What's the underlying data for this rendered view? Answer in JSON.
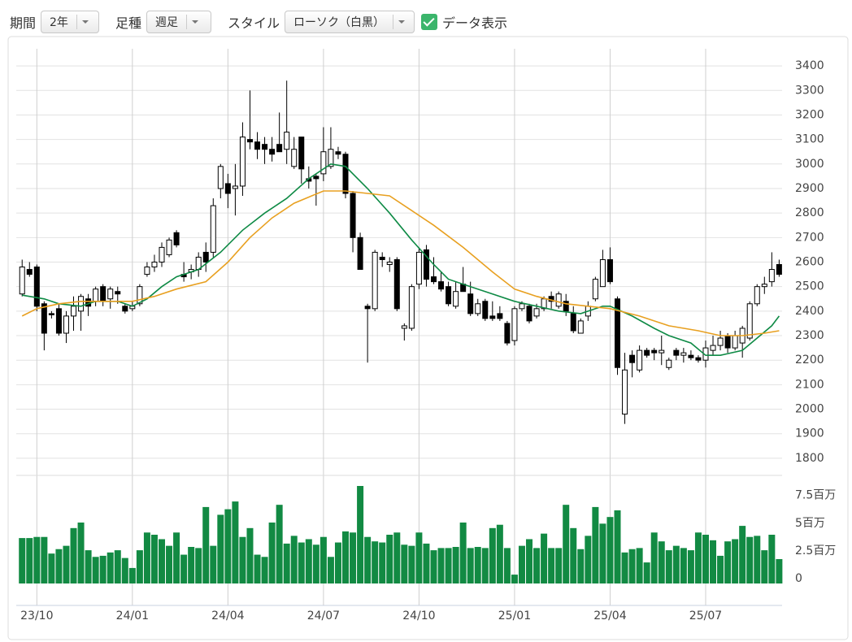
{
  "controls": [
    {
      "label": "期間",
      "value": "2年"
    },
    {
      "label": "足種",
      "value": "週足"
    },
    {
      "label": "スタイル",
      "value": "ローソク（白黒）"
    }
  ],
  "checkbox": {
    "label": "データ表示"
  },
  "chart_data": {
    "type": "candlestick",
    "xlim": [
      -0.8,
      103.4
    ],
    "xticks": [
      {
        "value": 2,
        "label": "23/10"
      },
      {
        "value": 15,
        "label": "24/01"
      },
      {
        "value": 28,
        "label": "24/04"
      },
      {
        "value": 41,
        "label": "24/07"
      },
      {
        "value": 54,
        "label": "24/10"
      },
      {
        "value": 67,
        "label": "25/01"
      },
      {
        "value": 80,
        "label": "25/04"
      },
      {
        "value": 93,
        "label": "25/07"
      }
    ],
    "ylim": [
      1730,
      3470
    ],
    "yticks": [
      1800,
      1900,
      2000,
      2100,
      2200,
      2300,
      2400,
      2500,
      2600,
      2700,
      2800,
      2900,
      3000,
      3100,
      3200,
      3300,
      3400
    ],
    "grid": true,
    "up_color": "#ffffff",
    "down_color": "#000000",
    "ohlc": [
      [
        2470,
        2610,
        2460,
        2580
      ],
      [
        2570,
        2600,
        2540,
        2550
      ],
      [
        2580,
        2590,
        2400,
        2420
      ],
      [
        2430,
        2440,
        2240,
        2310
      ],
      [
        2390,
        2400,
        2370,
        2385
      ],
      [
        2410,
        2430,
        2300,
        2310
      ],
      [
        2310,
        2400,
        2270,
        2380
      ],
      [
        2380,
        2460,
        2320,
        2420
      ],
      [
        2400,
        2470,
        2320,
        2460
      ],
      [
        2450,
        2470,
        2380,
        2420
      ],
      [
        2440,
        2500,
        2420,
        2490
      ],
      [
        2500,
        2510,
        2420,
        2440
      ],
      [
        2450,
        2500,
        2410,
        2490
      ],
      [
        2480,
        2500,
        2430,
        2470
      ],
      [
        2420,
        2430,
        2390,
        2400
      ],
      [
        2410,
        2440,
        2400,
        2420
      ],
      [
        2430,
        2510,
        2420,
        2500
      ],
      [
        2550,
        2600,
        2540,
        2580
      ],
      [
        2580,
        2630,
        2560,
        2600
      ],
      [
        2600,
        2680,
        2580,
        2660
      ],
      [
        2630,
        2700,
        2620,
        2690
      ],
      [
        2720,
        2730,
        2660,
        2670
      ],
      [
        2550,
        2600,
        2520,
        2540
      ],
      [
        2560,
        2590,
        2530,
        2570
      ],
      [
        2570,
        2640,
        2540,
        2620
      ],
      [
        2640,
        2680,
        2560,
        2600
      ],
      [
        2640,
        2860,
        2620,
        2830
      ],
      [
        2900,
        3000,
        2860,
        2990
      ],
      [
        2920,
        2960,
        2820,
        2880
      ],
      [
        2900,
        3000,
        2790,
        2910
      ],
      [
        2910,
        3170,
        2870,
        3110
      ],
      [
        3100,
        3300,
        3060,
        3090
      ],
      [
        3090,
        3130,
        3020,
        3060
      ],
      [
        3080,
        3110,
        3000,
        3060
      ],
      [
        3060,
        3110,
        3010,
        3040
      ],
      [
        3080,
        3210,
        3050,
        3050
      ],
      [
        3060,
        3340,
        3000,
        3130
      ],
      [
        2990,
        3110,
        2980,
        3060
      ],
      [
        3110,
        3110,
        2920,
        2980
      ],
      [
        2940,
        2990,
        2900,
        2930
      ],
      [
        2950,
        2960,
        2830,
        2940
      ],
      [
        2960,
        3150,
        2930,
        3050
      ],
      [
        2990,
        3150,
        2980,
        3060
      ],
      [
        3050,
        3070,
        3020,
        3040
      ],
      [
        3040,
        3050,
        2860,
        2880
      ],
      [
        2880,
        2890,
        2640,
        2700
      ],
      [
        2700,
        2720,
        2570,
        2570
      ],
      [
        2420,
        2430,
        2190,
        2410
      ],
      [
        2410,
        2650,
        2400,
        2640
      ],
      [
        2620,
        2640,
        2580,
        2610
      ],
      [
        2590,
        2620,
        2560,
        2600
      ],
      [
        2610,
        2620,
        2400,
        2410
      ],
      [
        2330,
        2350,
        2280,
        2340
      ],
      [
        2330,
        2510,
        2320,
        2500
      ],
      [
        2510,
        2660,
        2490,
        2640
      ],
      [
        2650,
        2670,
        2500,
        2530
      ],
      [
        2540,
        2620,
        2510,
        2520
      ],
      [
        2520,
        2560,
        2480,
        2490
      ],
      [
        2500,
        2520,
        2420,
        2430
      ],
      [
        2420,
        2520,
        2410,
        2480
      ],
      [
        2510,
        2580,
        2480,
        2480
      ],
      [
        2470,
        2520,
        2380,
        2390
      ],
      [
        2390,
        2450,
        2380,
        2430
      ],
      [
        2440,
        2450,
        2360,
        2370
      ],
      [
        2380,
        2440,
        2360,
        2370
      ],
      [
        2390,
        2420,
        2360,
        2370
      ],
      [
        2350,
        2360,
        2260,
        2270
      ],
      [
        2280,
        2420,
        2260,
        2410
      ],
      [
        2410,
        2440,
        2400,
        2430
      ],
      [
        2420,
        2430,
        2350,
        2360
      ],
      [
        2380,
        2430,
        2370,
        2410
      ],
      [
        2410,
        2460,
        2400,
        2450
      ],
      [
        2460,
        2480,
        2410,
        2440
      ],
      [
        2420,
        2480,
        2410,
        2470
      ],
      [
        2440,
        2470,
        2380,
        2400
      ],
      [
        2390,
        2420,
        2310,
        2320
      ],
      [
        2310,
        2370,
        2310,
        2360
      ],
      [
        2380,
        2440,
        2360,
        2420
      ],
      [
        2450,
        2540,
        2440,
        2530
      ],
      [
        2500,
        2650,
        2500,
        2610
      ],
      [
        2610,
        2660,
        2510,
        2520
      ],
      [
        2450,
        2460,
        2140,
        2170
      ],
      [
        1980,
        2230,
        1940,
        2160
      ],
      [
        2220,
        2240,
        2130,
        2190
      ],
      [
        2160,
        2260,
        2150,
        2240
      ],
      [
        2240,
        2250,
        2210,
        2220
      ],
      [
        2240,
        2250,
        2200,
        2230
      ],
      [
        2230,
        2300,
        2180,
        2240
      ],
      [
        2170,
        2210,
        2160,
        2200
      ],
      [
        2240,
        2250,
        2200,
        2220
      ],
      [
        2220,
        2250,
        2190,
        2230
      ],
      [
        2220,
        2240,
        2200,
        2210
      ],
      [
        2210,
        2220,
        2190,
        2200
      ],
      [
        2200,
        2280,
        2170,
        2250
      ],
      [
        2240,
        2300,
        2220,
        2260
      ],
      [
        2260,
        2320,
        2240,
        2290
      ],
      [
        2300,
        2310,
        2230,
        2250
      ],
      [
        2250,
        2320,
        2240,
        2300
      ],
      [
        2270,
        2340,
        2210,
        2330
      ],
      [
        2290,
        2440,
        2280,
        2430
      ],
      [
        2430,
        2510,
        2420,
        2500
      ],
      [
        2500,
        2540,
        2470,
        2510
      ],
      [
        2520,
        2640,
        2500,
        2570
      ],
      [
        2590,
        2610,
        2540,
        2550
      ]
    ],
    "moving_averages": [
      {
        "color": "#0e8a45",
        "x": [
          0,
          3,
          5,
          8,
          10,
          13,
          15,
          17,
          19,
          21,
          24,
          27,
          30,
          33,
          36,
          39,
          42,
          44,
          47,
          50,
          53,
          56,
          58,
          61,
          64,
          67,
          70,
          73,
          76,
          79,
          80,
          83,
          86,
          88,
          91,
          93,
          95,
          98,
          100,
          102,
          103
        ],
        "values": [
          2465,
          2450,
          2430,
          2420,
          2440,
          2440,
          2420,
          2450,
          2500,
          2540,
          2570,
          2640,
          2730,
          2800,
          2860,
          2940,
          3000,
          2990,
          2900,
          2800,
          2690,
          2590,
          2530,
          2500,
          2470,
          2440,
          2420,
          2400,
          2390,
          2420,
          2420,
          2380,
          2330,
          2300,
          2270,
          2220,
          2220,
          2240,
          2290,
          2340,
          2380
        ]
      },
      {
        "color": "#e8a020",
        "x": [
          0,
          2,
          5,
          8,
          12,
          15,
          18,
          21,
          25,
          28,
          31,
          34,
          37,
          41,
          44,
          47,
          50,
          53,
          56,
          60,
          64,
          67,
          70,
          74,
          77,
          80,
          84,
          88,
          92,
          95,
          98,
          101,
          103
        ],
        "values": [
          2380,
          2410,
          2430,
          2440,
          2440,
          2440,
          2460,
          2490,
          2520,
          2600,
          2700,
          2780,
          2840,
          2890,
          2890,
          2880,
          2870,
          2810,
          2750,
          2660,
          2560,
          2490,
          2460,
          2430,
          2420,
          2410,
          2380,
          2340,
          2320,
          2300,
          2300,
          2310,
          2320
        ]
      }
    ],
    "volume": [
      4.1,
      4.1,
      4.2,
      4.2,
      2.7,
      3.1,
      3.4,
      5.0,
      5.5,
      3.0,
      2.4,
      2.5,
      2.8,
      3.0,
      2.3,
      1.4,
      3.0,
      4.6,
      4.4,
      4.0,
      3.4,
      4.6,
      2.6,
      3.3,
      3.2,
      6.9,
      3.4,
      6.2,
      6.7,
      7.4,
      4.2,
      5.0,
      2.6,
      2.4,
      5.5,
      7.1,
      3.6,
      4.3,
      3.7,
      4.0,
      3.5,
      4.2,
      2.4,
      3.7,
      4.7,
      4.6,
      8.8,
      4.2,
      3.8,
      3.7,
      4.4,
      4.6,
      3.5,
      3.4,
      4.6,
      3.6,
      3.0,
      3.2,
      3.2,
      3.3,
      5.5,
      3.2,
      3.3,
      3.2,
      5.0,
      5.3,
      3.2,
      0.8,
      3.4,
      4.0,
      3.2,
      4.5,
      3.2,
      3.2,
      7.1,
      5.0,
      3.1,
      4.3,
      6.9,
      5.4,
      6.0,
      6.6,
      2.8,
      3.1,
      3.2,
      1.9,
      4.6,
      3.8,
      3.0,
      3.4,
      3.2,
      3.0,
      4.6,
      4.4,
      3.9,
      2.5,
      3.8,
      4.0,
      5.2,
      4.2,
      4.3,
      3.0,
      4.4,
      2.2
    ],
    "volume_color": "#128a43",
    "volume_ylim": [
      0,
      8.8
    ],
    "volume_yticks": [
      0,
      {
        "value": 2.5,
        "label": "2.5百万"
      },
      {
        "value": 5,
        "label": "5百万"
      },
      {
        "value": 7.5,
        "label": "7.5百万"
      }
    ]
  }
}
